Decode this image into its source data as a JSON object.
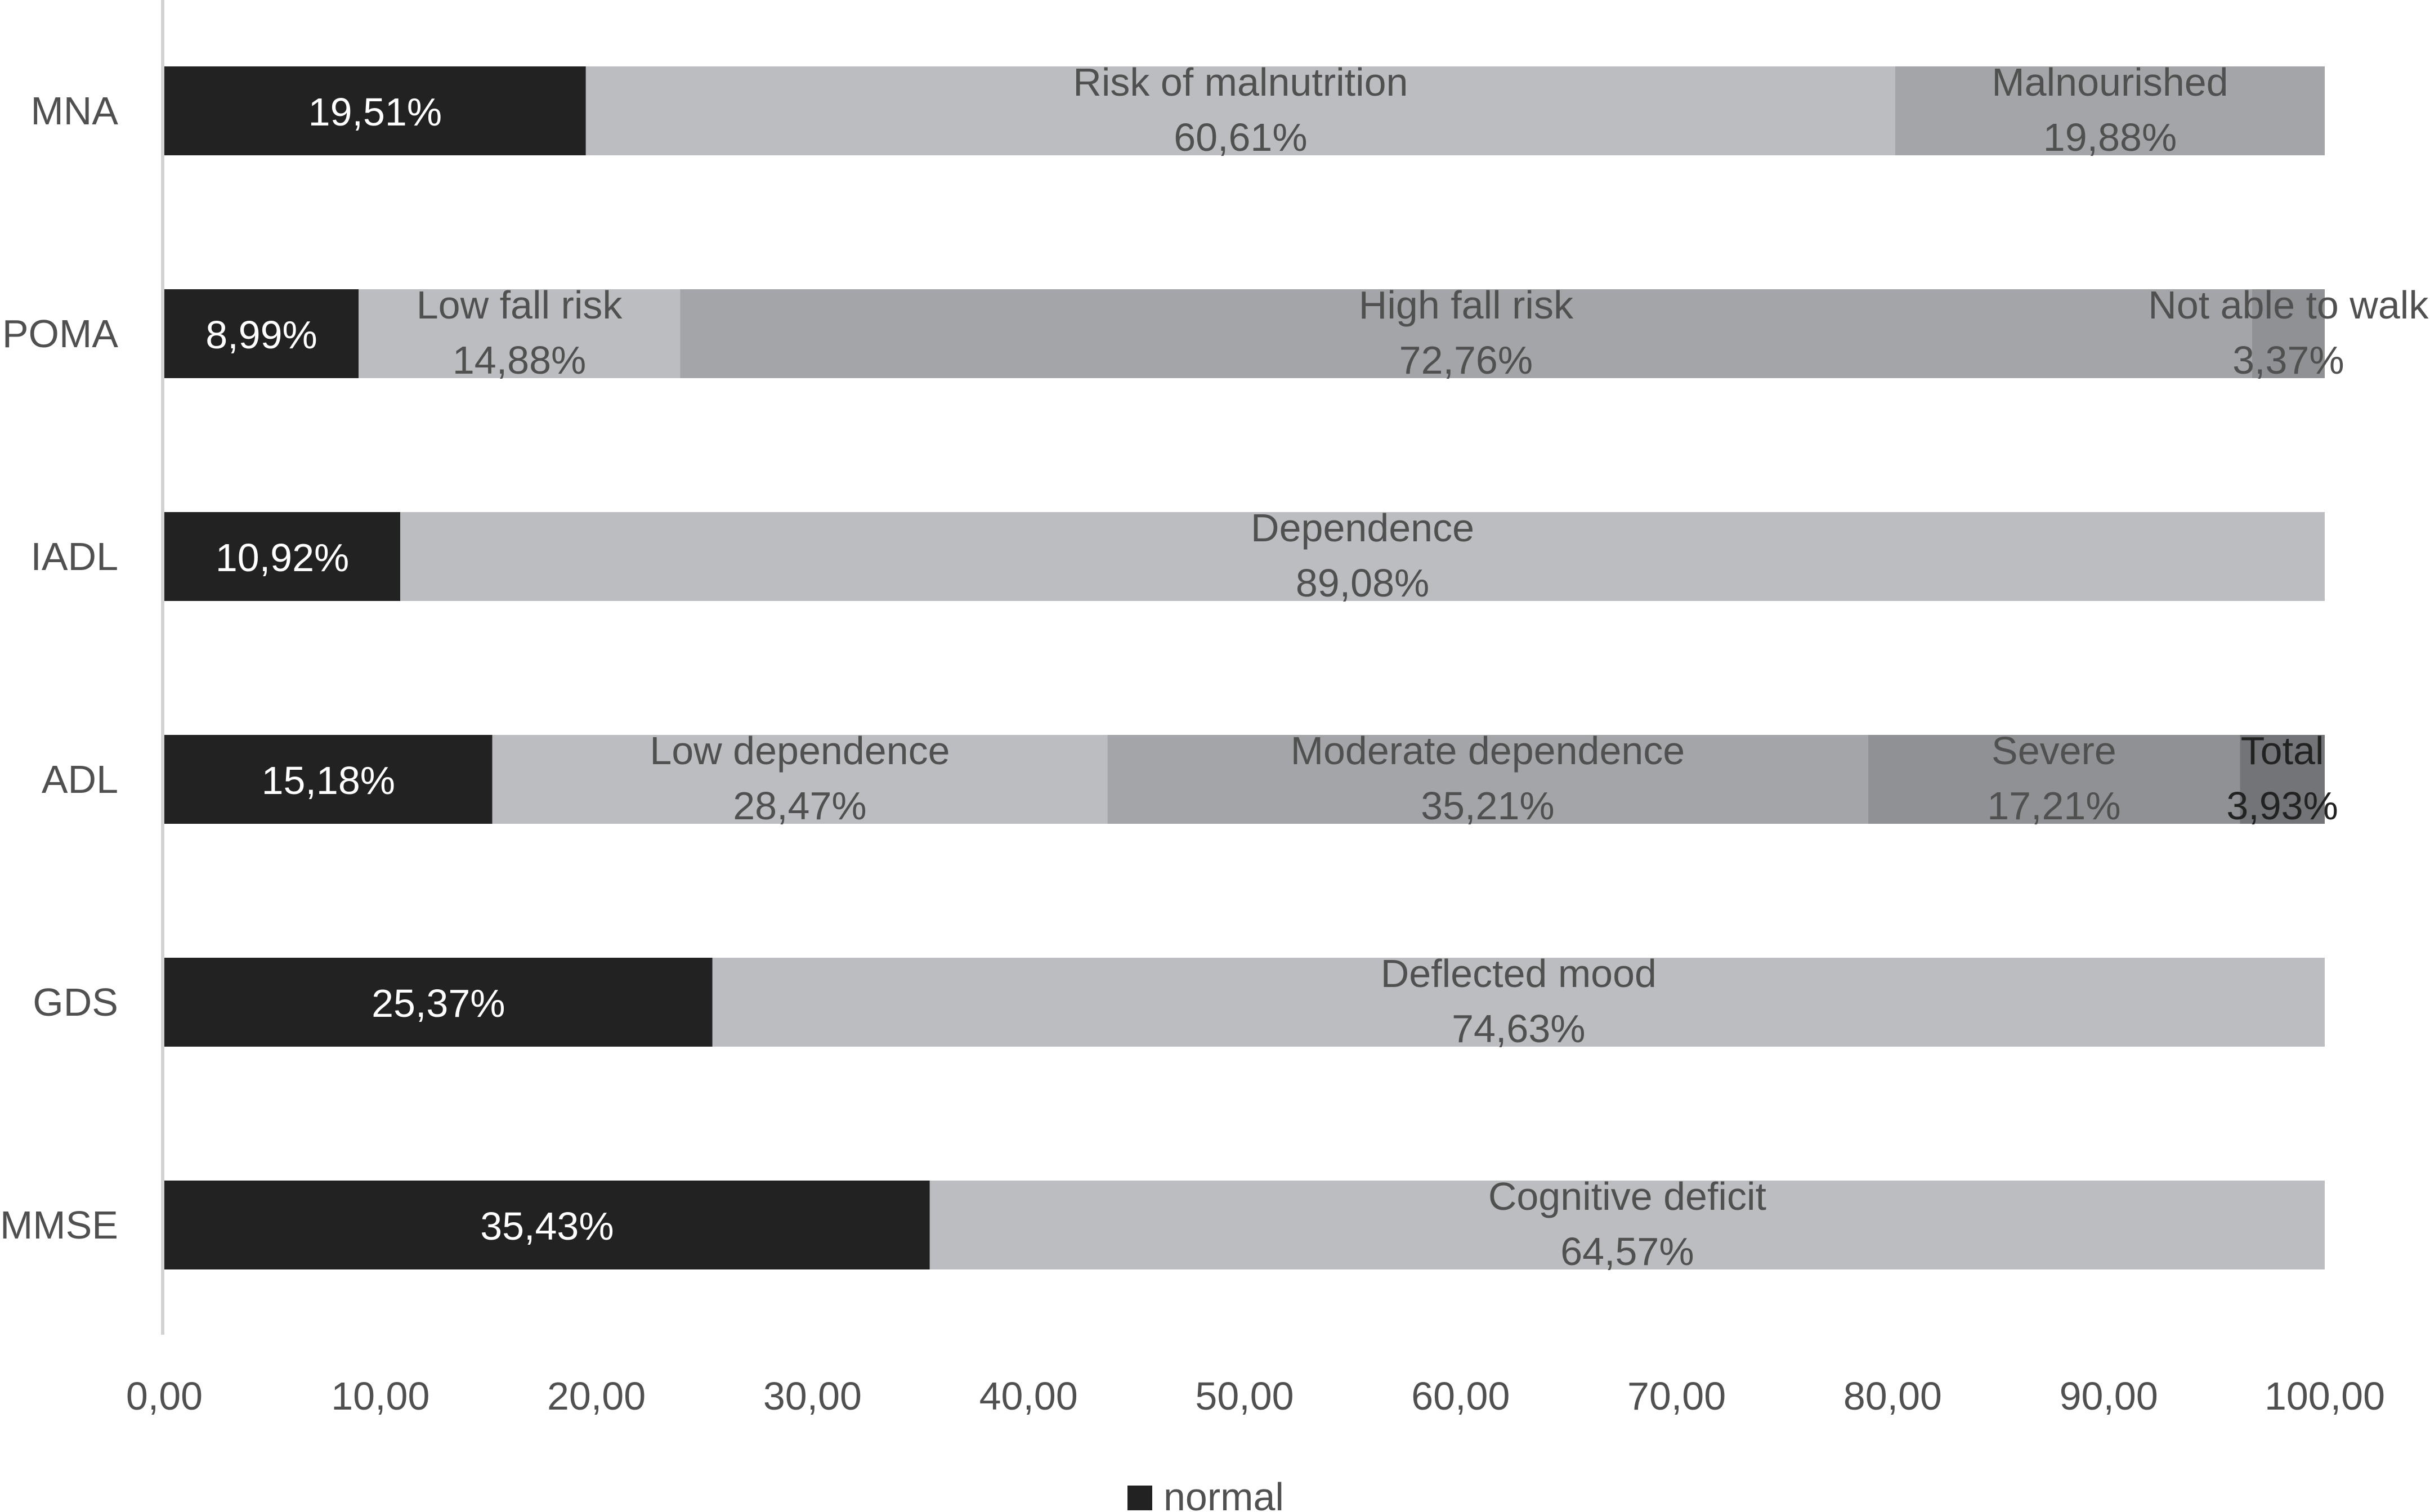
{
  "chart_data": {
    "type": "bar",
    "orientation": "horizontal",
    "stacked": true,
    "categories": [
      "MNA",
      "POMA",
      "IADL",
      "ADL",
      "GDS",
      "MMSE"
    ],
    "rows": [
      {
        "category": "MNA",
        "segments": [
          {
            "name": "normal",
            "value": 19.51,
            "value_label": "19,51%",
            "color": "#222222",
            "text_color": "#ffffff"
          },
          {
            "name": "Risk of malnutrition",
            "value": 60.61,
            "value_label": "60,61%",
            "color": "#bcbdc0",
            "text_color": "#505050"
          },
          {
            "name": "Malnourished",
            "value": 19.88,
            "value_label": "19,88%",
            "color": "#a3a5a8",
            "text_color": "#505050"
          }
        ]
      },
      {
        "category": "POMA",
        "segments": [
          {
            "name": "normal",
            "value": 8.99,
            "value_label": "8,99%",
            "color": "#222222",
            "text_color": "#ffffff"
          },
          {
            "name": "Low fall risk",
            "value": 14.88,
            "value_label": "14,88%",
            "color": "#bcbdc0",
            "text_color": "#505050"
          },
          {
            "name": "High fall risk",
            "value": 72.76,
            "value_label": "72,76%",
            "color": "#a3a5a8",
            "text_color": "#505050"
          },
          {
            "name": "Not able to walk",
            "value": 3.37,
            "value_label": "3,37%",
            "color": "#8f9194",
            "text_color": "#505050"
          }
        ]
      },
      {
        "category": "IADL",
        "segments": [
          {
            "name": "normal",
            "value": 10.92,
            "value_label": "10,92%",
            "color": "#222222",
            "text_color": "#ffffff"
          },
          {
            "name": "Dependence",
            "value": 89.08,
            "value_label": "89,08%",
            "color": "#bcbdc0",
            "text_color": "#505050"
          }
        ]
      },
      {
        "category": "ADL",
        "segments": [
          {
            "name": "normal",
            "value": 15.18,
            "value_label": "15,18%",
            "color": "#222222",
            "text_color": "#ffffff"
          },
          {
            "name": "Low dependence",
            "value": 28.47,
            "value_label": "28,47%",
            "color": "#bcbdc0",
            "text_color": "#505050"
          },
          {
            "name": "Moderate dependence",
            "value": 35.21,
            "value_label": "35,21%",
            "color": "#a3a5a8",
            "text_color": "#505050"
          },
          {
            "name": "Severe",
            "value": 17.21,
            "value_label": "17,21%",
            "color": "#8f9194",
            "text_color": "#505050"
          },
          {
            "name": "Total",
            "value": 3.93,
            "value_label": "3,93%",
            "color": "#727477",
            "text_color": "#222222"
          }
        ]
      },
      {
        "category": "GDS",
        "segments": [
          {
            "name": "normal",
            "value": 25.37,
            "value_label": "25,37%",
            "color": "#222222",
            "text_color": "#ffffff"
          },
          {
            "name": "Deflected mood",
            "value": 74.63,
            "value_label": "74,63%",
            "color": "#bcbdc0",
            "text_color": "#505050"
          }
        ]
      },
      {
        "category": "MMSE",
        "segments": [
          {
            "name": "normal",
            "value": 35.43,
            "value_label": "35,43%",
            "color": "#222222",
            "text_color": "#ffffff"
          },
          {
            "name": "Cognitive deficit",
            "value": 64.57,
            "value_label": "64,57%",
            "color": "#bcbdc0",
            "text_color": "#505050"
          }
        ]
      }
    ],
    "xlim": [
      0,
      100
    ],
    "x_ticks": [
      0,
      10,
      20,
      30,
      40,
      50,
      60,
      70,
      80,
      90,
      100
    ],
    "x_tick_labels": [
      "0,00",
      "10,00",
      "20,00",
      "30,00",
      "40,00",
      "50,00",
      "60,00",
      "70,00",
      "80,00",
      "90,00",
      "100,00"
    ],
    "title": "",
    "xlabel": "",
    "ylabel": "",
    "grid": false,
    "legend": {
      "position": "bottom-center",
      "entries": [
        {
          "label": "normal",
          "color": "#222222"
        }
      ]
    }
  }
}
